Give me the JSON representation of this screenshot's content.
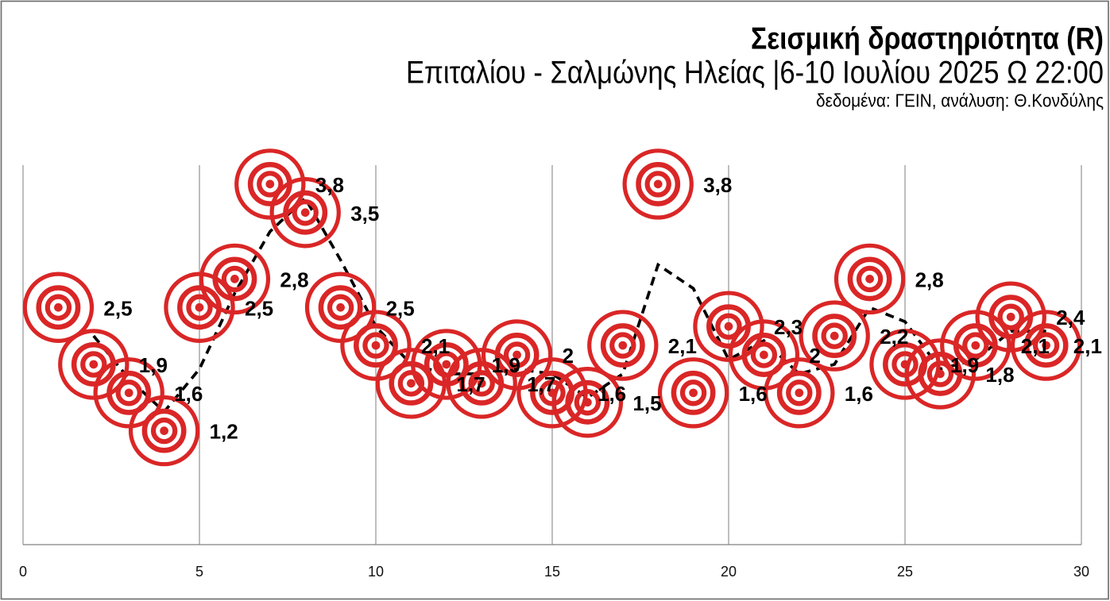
{
  "page": {
    "background_color": "#ffffff",
    "frame_border_color": "#6f6f6f"
  },
  "header": {
    "title": "Σεισμική δραστηριότητα (R)",
    "subtitle": "Επιταλίου - Σαλμώνης Ηλείας |6-10 Ιουλίου 2025 Ω 22:00",
    "source_note": "δεδομένα: ΓΕΙΝ, ανάλυση: Θ.Κονδύλης"
  },
  "chart_data": {
    "type": "scatter",
    "marker_style": "bullseye-concentric-circles",
    "title": "Σεισμική δραστηριότητα (R)",
    "xlabel": "",
    "ylabel": "",
    "x": [
      1,
      2,
      3,
      4,
      5,
      6,
      7,
      8,
      9,
      10,
      11,
      12,
      13,
      14,
      15,
      16,
      17,
      18,
      19,
      20,
      21,
      22,
      23,
      24,
      25,
      26,
      27,
      28,
      29
    ],
    "values": [
      2.5,
      1.9,
      1.6,
      1.2,
      2.5,
      2.8,
      3.8,
      3.5,
      2.5,
      2.1,
      1.7,
      1.9,
      1.7,
      2.0,
      1.6,
      1.5,
      2.1,
      3.8,
      1.6,
      2.3,
      2.0,
      1.6,
      2.2,
      2.8,
      1.9,
      1.8,
      2.1,
      2.4,
      2.1
    ],
    "point_labels": [
      "2,5",
      "1,9",
      "1,6",
      "1,2",
      "2,5",
      "2,8",
      "3,8",
      "3,5",
      "2,5",
      "2,1",
      "1,7",
      "1,9",
      "1,7",
      "2",
      "1,6",
      "1,5",
      "2,1",
      "3,8",
      "1,6",
      "2,3",
      "2",
      "1,6",
      "2,2",
      "2,8",
      "1,9",
      "1,8",
      "2,1",
      "2,4",
      "2,1"
    ],
    "xlim": [
      0,
      30
    ],
    "ylim": [
      0,
      4
    ],
    "x_ticks": [
      0,
      5,
      10,
      15,
      20,
      25,
      30
    ],
    "y_ticks": [],
    "grid": "vertical-gridlines-only",
    "legend": "none",
    "trendline": {
      "type": "moving_average",
      "period": 2,
      "style": "dashed",
      "color": "#000000"
    },
    "colors": {
      "marker": "#da2626",
      "point_labels": "#000000",
      "gridlines": "#8a8a8a",
      "axis_line": "#808080",
      "trendline": "#000000"
    }
  }
}
